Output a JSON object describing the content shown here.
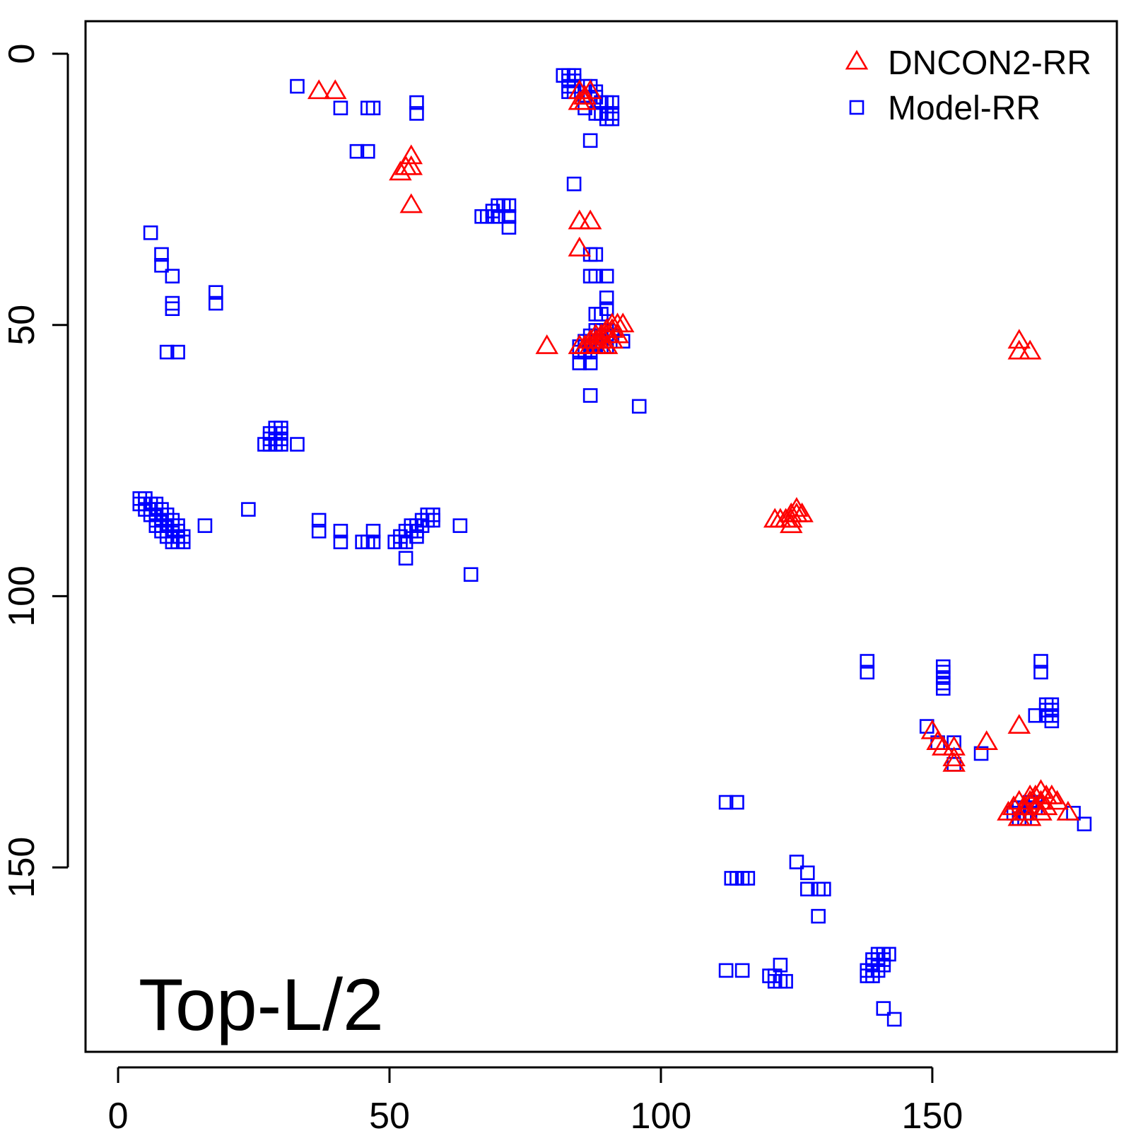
{
  "chart_data": {
    "type": "scatter",
    "title": "",
    "xlabel": "",
    "ylabel": "",
    "xlim": [
      -6,
      184
    ],
    "ylim": [
      -6,
      184
    ],
    "y_reversed": true,
    "x_ticks": [
      0,
      50,
      100,
      150
    ],
    "y_ticks": [
      0,
      50,
      100,
      150
    ],
    "annotation": "Top-L/2",
    "legend_position": "top-right",
    "series": [
      {
        "name": "DNCON2-RR",
        "marker": "triangle",
        "color": "#ff0000",
        "points": [
          [
            37,
            7
          ],
          [
            40,
            7
          ],
          [
            52,
            22
          ],
          [
            53,
            21
          ],
          [
            54,
            19
          ],
          [
            54,
            21
          ],
          [
            54,
            28
          ],
          [
            85,
            7
          ],
          [
            86,
            8
          ],
          [
            87,
            7
          ],
          [
            85,
            9
          ],
          [
            86,
            9
          ],
          [
            85,
            31
          ],
          [
            87,
            31
          ],
          [
            85,
            36
          ],
          [
            79,
            54
          ],
          [
            85,
            54
          ],
          [
            86,
            54
          ],
          [
            87,
            53
          ],
          [
            87,
            54
          ],
          [
            88,
            52
          ],
          [
            88,
            53
          ],
          [
            89,
            52
          ],
          [
            89,
            53
          ],
          [
            90,
            51
          ],
          [
            90,
            52
          ],
          [
            91,
            50
          ],
          [
            91,
            51
          ],
          [
            92,
            50
          ],
          [
            93,
            50
          ],
          [
            88,
            54
          ],
          [
            89,
            54
          ],
          [
            90,
            54
          ],
          [
            91,
            53
          ],
          [
            92,
            52
          ],
          [
            121,
            86
          ],
          [
            122,
            86
          ],
          [
            123,
            86
          ],
          [
            124,
            85
          ],
          [
            124,
            86
          ],
          [
            125,
            85
          ],
          [
            125,
            84
          ],
          [
            126,
            85
          ],
          [
            124,
            87
          ],
          [
            166,
            53
          ],
          [
            166,
            55
          ],
          [
            168,
            55
          ],
          [
            150,
            125
          ],
          [
            151,
            127
          ],
          [
            152,
            128
          ],
          [
            154,
            128
          ],
          [
            154,
            130
          ],
          [
            154,
            131
          ],
          [
            160,
            127
          ],
          [
            166,
            124
          ],
          [
            164,
            140
          ],
          [
            165,
            139
          ],
          [
            166,
            138
          ],
          [
            167,
            139
          ],
          [
            167,
            140
          ],
          [
            168,
            137
          ],
          [
            168,
            138
          ],
          [
            169,
            137
          ],
          [
            169,
            139
          ],
          [
            170,
            136
          ],
          [
            170,
            138
          ],
          [
            171,
            137
          ],
          [
            171,
            139
          ],
          [
            172,
            137
          ],
          [
            173,
            138
          ],
          [
            175,
            140
          ],
          [
            166,
            141
          ],
          [
            168,
            141
          ],
          [
            170,
            140
          ]
        ]
      },
      {
        "name": "Model-RR",
        "marker": "square",
        "color": "#0000ff",
        "points": [
          [
            33,
            6
          ],
          [
            41,
            10
          ],
          [
            46,
            10
          ],
          [
            47,
            10
          ],
          [
            44,
            18
          ],
          [
            46,
            18
          ],
          [
            55,
            9
          ],
          [
            55,
            11
          ],
          [
            82,
            4
          ],
          [
            83,
            4
          ],
          [
            84,
            4
          ],
          [
            83,
            5
          ],
          [
            84,
            5
          ],
          [
            83,
            6
          ],
          [
            84,
            6
          ],
          [
            83,
            7
          ],
          [
            84,
            7
          ],
          [
            86,
            6
          ],
          [
            87,
            6
          ],
          [
            86,
            8
          ],
          [
            87,
            8
          ],
          [
            88,
            7
          ],
          [
            88,
            8
          ],
          [
            89,
            9
          ],
          [
            90,
            9
          ],
          [
            91,
            9
          ],
          [
            86,
            10
          ],
          [
            88,
            11
          ],
          [
            89,
            11
          ],
          [
            90,
            11
          ],
          [
            91,
            11
          ],
          [
            90,
            12
          ],
          [
            91,
            12
          ],
          [
            87,
            16
          ],
          [
            84,
            24
          ],
          [
            67,
            30
          ],
          [
            68,
            30
          ],
          [
            69,
            30
          ],
          [
            70,
            30
          ],
          [
            69,
            29
          ],
          [
            70,
            28
          ],
          [
            71,
            28
          ],
          [
            72,
            28
          ],
          [
            72,
            30
          ],
          [
            72,
            32
          ],
          [
            6,
            33
          ],
          [
            8,
            37
          ],
          [
            8,
            39
          ],
          [
            10,
            41
          ],
          [
            10,
            46
          ],
          [
            10,
            47
          ],
          [
            18,
            44
          ],
          [
            18,
            46
          ],
          [
            9,
            55
          ],
          [
            11,
            55
          ],
          [
            87,
            37
          ],
          [
            88,
            37
          ],
          [
            87,
            41
          ],
          [
            88,
            41
          ],
          [
            90,
            41
          ],
          [
            90,
            45
          ],
          [
            89,
            48
          ],
          [
            90,
            47
          ],
          [
            88,
            48
          ],
          [
            88,
            51
          ],
          [
            89,
            51
          ],
          [
            90,
            51
          ],
          [
            87,
            52
          ],
          [
            88,
            52
          ],
          [
            89,
            52
          ],
          [
            90,
            52
          ],
          [
            91,
            52
          ],
          [
            86,
            53
          ],
          [
            87,
            53
          ],
          [
            88,
            53
          ],
          [
            89,
            53
          ],
          [
            85,
            54
          ],
          [
            86,
            54
          ],
          [
            87,
            54
          ],
          [
            88,
            54
          ],
          [
            89,
            54
          ],
          [
            90,
            54
          ],
          [
            85,
            55
          ],
          [
            86,
            55
          ],
          [
            87,
            55
          ],
          [
            85,
            57
          ],
          [
            87,
            57
          ],
          [
            93,
            53
          ],
          [
            87,
            63
          ],
          [
            96,
            65
          ],
          [
            29,
            69
          ],
          [
            30,
            69
          ],
          [
            28,
            70
          ],
          [
            29,
            70
          ],
          [
            30,
            70
          ],
          [
            28,
            71
          ],
          [
            29,
            71
          ],
          [
            30,
            71
          ],
          [
            28,
            72
          ],
          [
            29,
            72
          ],
          [
            30,
            72
          ],
          [
            27,
            72
          ],
          [
            33,
            72
          ],
          [
            4,
            82
          ],
          [
            5,
            82
          ],
          [
            4,
            83
          ],
          [
            5,
            83
          ],
          [
            6,
            83
          ],
          [
            7,
            83
          ],
          [
            5,
            84
          ],
          [
            6,
            84
          ],
          [
            7,
            84
          ],
          [
            8,
            84
          ],
          [
            6,
            85
          ],
          [
            7,
            85
          ],
          [
            8,
            85
          ],
          [
            9,
            85
          ],
          [
            7,
            86
          ],
          [
            8,
            86
          ],
          [
            9,
            86
          ],
          [
            10,
            86
          ],
          [
            7,
            87
          ],
          [
            8,
            87
          ],
          [
            9,
            87
          ],
          [
            10,
            87
          ],
          [
            11,
            87
          ],
          [
            8,
            88
          ],
          [
            9,
            88
          ],
          [
            10,
            88
          ],
          [
            11,
            88
          ],
          [
            9,
            89
          ],
          [
            10,
            89
          ],
          [
            11,
            89
          ],
          [
            12,
            89
          ],
          [
            10,
            90
          ],
          [
            11,
            90
          ],
          [
            12,
            90
          ],
          [
            16,
            87
          ],
          [
            24,
            84
          ],
          [
            37,
            86
          ],
          [
            37,
            88
          ],
          [
            41,
            88
          ],
          [
            41,
            90
          ],
          [
            45,
            90
          ],
          [
            46,
            90
          ],
          [
            47,
            90
          ],
          [
            47,
            88
          ],
          [
            51,
            90
          ],
          [
            52,
            89
          ],
          [
            53,
            88
          ],
          [
            52,
            90
          ],
          [
            53,
            90
          ],
          [
            54,
            87
          ],
          [
            55,
            87
          ],
          [
            54,
            88
          ],
          [
            55,
            88
          ],
          [
            56,
            86
          ],
          [
            56,
            87
          ],
          [
            57,
            86
          ],
          [
            57,
            85
          ],
          [
            58,
            85
          ],
          [
            58,
            86
          ],
          [
            55,
            89
          ],
          [
            53,
            93
          ],
          [
            63,
            87
          ],
          [
            65,
            96
          ],
          [
            138,
            112
          ],
          [
            138,
            114
          ],
          [
            152,
            113
          ],
          [
            152,
            114
          ],
          [
            152,
            115
          ],
          [
            152,
            116
          ],
          [
            152,
            117
          ],
          [
            170,
            112
          ],
          [
            170,
            114
          ],
          [
            171,
            120
          ],
          [
            172,
            120
          ],
          [
            171,
            121
          ],
          [
            172,
            121
          ],
          [
            171,
            122
          ],
          [
            172,
            122
          ],
          [
            172,
            123
          ],
          [
            169,
            122
          ],
          [
            149,
            124
          ],
          [
            151,
            127
          ],
          [
            154,
            127
          ],
          [
            154,
            131
          ],
          [
            159,
            129
          ],
          [
            165,
            140
          ],
          [
            166,
            139
          ],
          [
            166,
            140
          ],
          [
            167,
            139
          ],
          [
            167,
            140
          ],
          [
            168,
            138
          ],
          [
            168,
            139
          ],
          [
            169,
            138
          ],
          [
            169,
            139
          ],
          [
            166,
            141
          ],
          [
            167,
            141
          ],
          [
            168,
            140
          ],
          [
            176,
            140
          ],
          [
            178,
            142
          ],
          [
            112,
            138
          ],
          [
            114,
            138
          ],
          [
            113,
            152
          ],
          [
            114,
            152
          ],
          [
            115,
            152
          ],
          [
            116,
            152
          ],
          [
            125,
            149
          ],
          [
            127,
            151
          ],
          [
            127,
            154
          ],
          [
            129,
            154
          ],
          [
            130,
            154
          ],
          [
            129,
            159
          ],
          [
            112,
            169
          ],
          [
            115,
            169
          ],
          [
            120,
            170
          ],
          [
            121,
            170
          ],
          [
            122,
            168
          ],
          [
            121,
            171
          ],
          [
            122,
            171
          ],
          [
            123,
            171
          ],
          [
            140,
            166
          ],
          [
            141,
            166
          ],
          [
            142,
            166
          ],
          [
            139,
            167
          ],
          [
            140,
            167
          ],
          [
            141,
            167
          ],
          [
            139,
            168
          ],
          [
            140,
            168
          ],
          [
            141,
            168
          ],
          [
            138,
            169
          ],
          [
            139,
            169
          ],
          [
            140,
            169
          ],
          [
            138,
            170
          ],
          [
            139,
            170
          ],
          [
            141,
            176
          ],
          [
            143,
            178
          ]
        ]
      }
    ]
  }
}
